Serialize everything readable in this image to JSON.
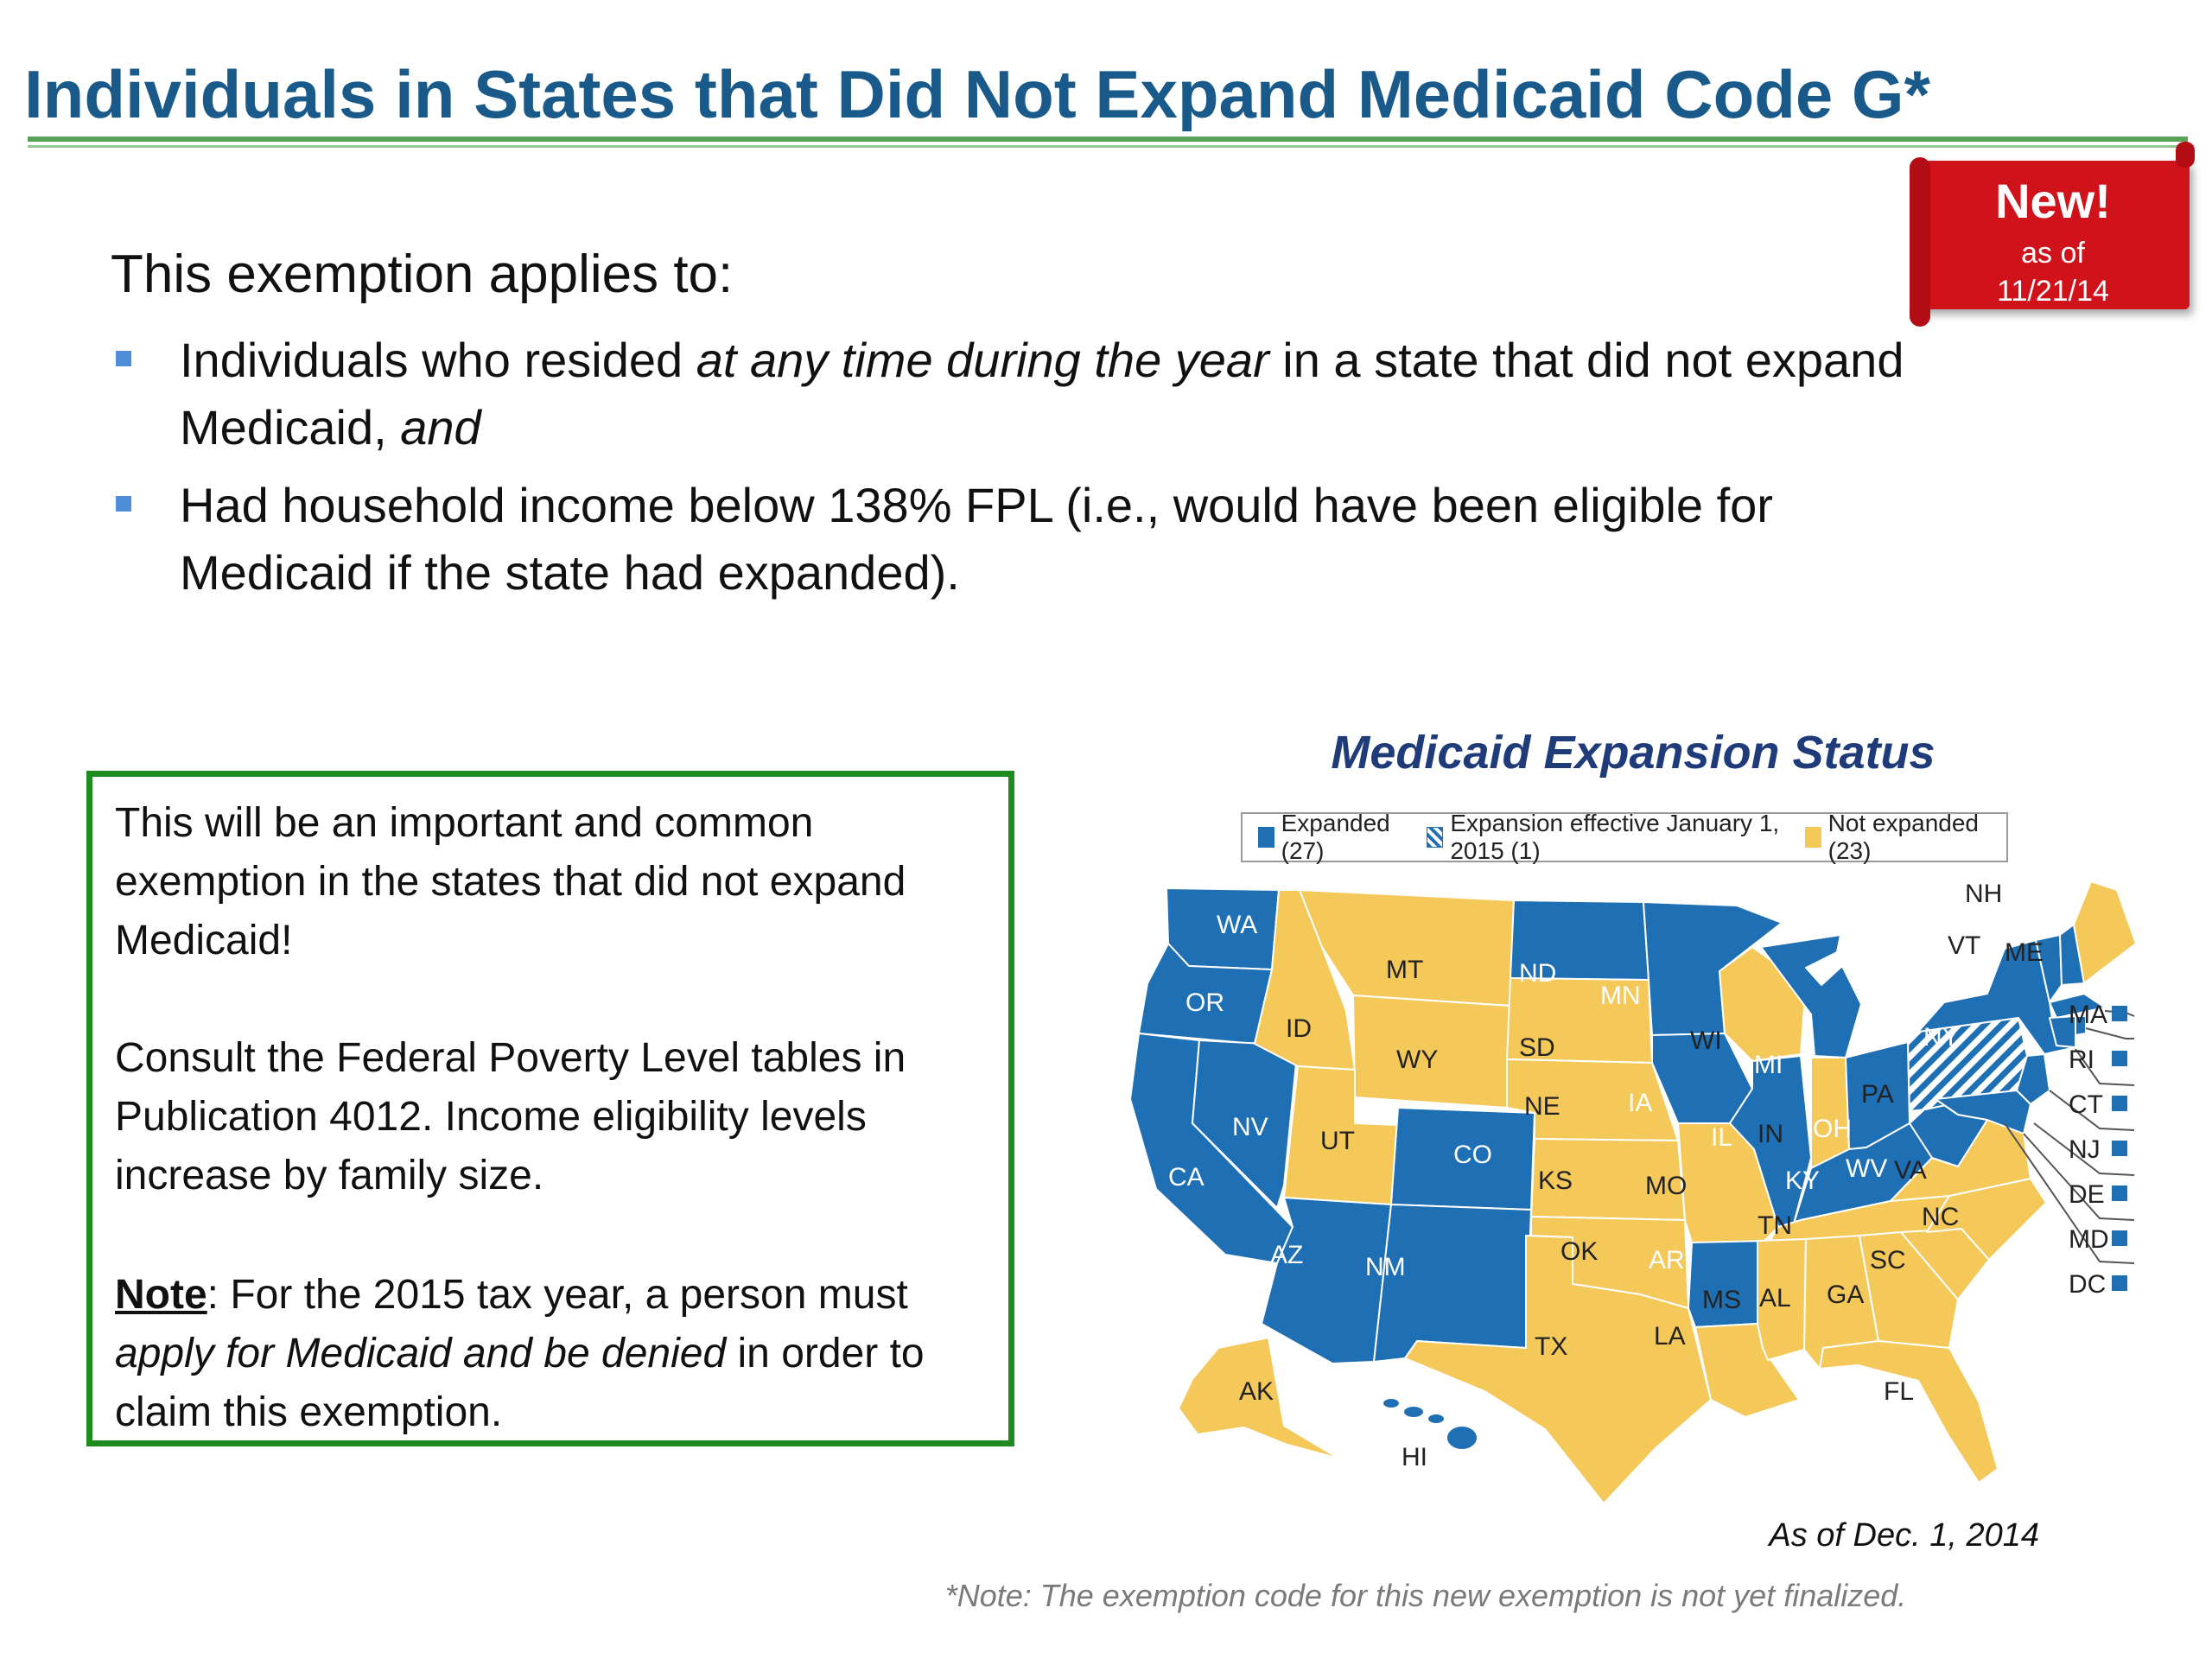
{
  "header": {
    "title": "Individuals in States that Did Not Expand Medicaid Code G*"
  },
  "badge": {
    "label": "New!",
    "sub_line1": "as of",
    "sub_line2": "11/21/14",
    "color": "#d0121b"
  },
  "intro": "This exemption applies to:",
  "bullets": [
    {
      "t1": "Individuals who resided ",
      "t2": "at any time during the year",
      "t3": " in a state that did not expand Medicaid, ",
      "t4": "and"
    },
    {
      "t1": "Had household income below 138% FPL (i.e., would have been eligible for Medicaid if the state had expanded)."
    }
  ],
  "callout": {
    "p1": "This will be an important and common exemption in the states that did not expand Medicaid!",
    "p2": "Consult the Federal Poverty Level tables in Publication 4012. Income eligibility levels increase by family size.",
    "note_label": "Note",
    "note_colon": ": For the 2015 tax year, a person must ",
    "note_em": "apply for Medicaid and be denied",
    "note_end": " in order to claim this exemption.",
    "border_color": "#1e8b1e"
  },
  "map": {
    "title": "Medicaid Expansion Status",
    "legend": {
      "expanded": "Expanded (27)",
      "effective": "Expansion effective January 1, 2015 (1)",
      "not_expanded": "Not expanded (23)"
    },
    "colors": {
      "expanded": "#1f6fb5",
      "not_expanded": "#f5c85a"
    },
    "states": {
      "WA": "WA",
      "OR": "OR",
      "CA": "CA",
      "NV": "NV",
      "ID": "ID",
      "MT": "MT",
      "WY": "WY",
      "UT": "UT",
      "AZ": "AZ",
      "CO": "CO",
      "NM": "NM",
      "ND": "ND",
      "SD": "SD",
      "NE": "NE",
      "KS": "KS",
      "OK": "OK",
      "TX": "TX",
      "MN": "MN",
      "IA": "IA",
      "MO": "MO",
      "AR": "AR",
      "LA": "LA",
      "WI": "WI",
      "IL": "IL",
      "MI": "MI",
      "IN": "IN",
      "OH": "OH",
      "KY": "KY",
      "TN": "TN",
      "MS": "MS",
      "AL": "AL",
      "GA": "GA",
      "FL": "FL",
      "SC": "SC",
      "NC": "NC",
      "VA": "VA",
      "WV": "WV",
      "PA": "PA",
      "NY": "NY",
      "VT": "VT",
      "NH": "NH",
      "ME": "ME",
      "AK": "AK",
      "HI": "HI"
    },
    "small_states": [
      "MA",
      "RI",
      "CT",
      "NJ",
      "DE",
      "MD",
      "DC"
    ],
    "as_of": "As of Dec. 1, 2014"
  },
  "footnote": "*Note: The exemption code for this new exemption is not yet finalized."
}
